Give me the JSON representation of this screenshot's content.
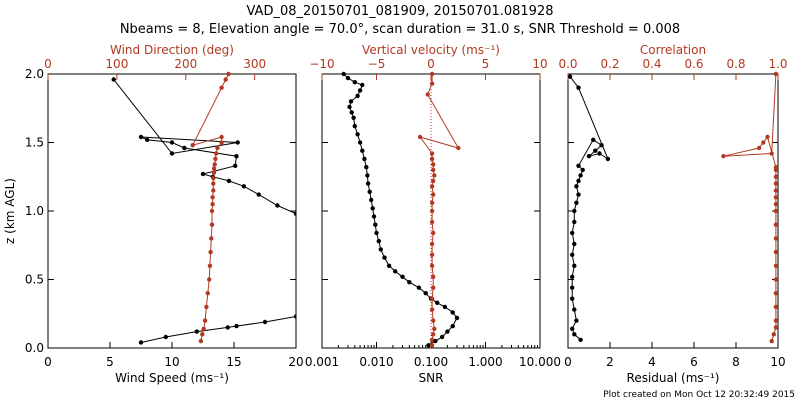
{
  "title": {
    "line1": "VAD_08_20150701_081909, 20150701.081928",
    "line2": "Nbeams = 8, Elevation angle = 70.0°, scan duration = 31.0 s, SNR Threshold = 0.008"
  },
  "footer": "Plot created on Mon Oct 12 20:32:49 2015",
  "colors": {
    "black": "#000000",
    "red": "#b23a22",
    "axis": "#000000"
  },
  "chart_data": [
    {
      "type": "scatter",
      "ylabel": "z (km AGL)",
      "ylim": [
        0.0,
        2.0
      ],
      "yticks": [
        0.0,
        0.5,
        1.0,
        1.5,
        2.0
      ],
      "ytick_labels": [
        "0.0",
        "0.5",
        "1.0",
        "1.5",
        "2.0"
      ],
      "bottom_axis": {
        "label": "Wind Speed (ms⁻¹)",
        "lim": [
          0,
          20
        ],
        "ticks": [
          0,
          5,
          10,
          15,
          20
        ],
        "tick_labels": [
          "0",
          "5",
          "10",
          "15",
          "20"
        ],
        "scale": "linear"
      },
      "top_axis": {
        "label": "Wind Direction (deg)",
        "lim": [
          0,
          360
        ],
        "ticks": [
          0,
          100,
          200,
          300
        ],
        "tick_labels": [
          "0",
          "100",
          "200",
          "300"
        ],
        "scale": "linear"
      },
      "series": [
        {
          "axis": "bottom",
          "color": "black",
          "x": [
            7.5,
            9.5,
            12,
            14.5,
            15.2,
            17.5,
            20,
            20,
            18.5,
            17,
            15.8,
            14.6,
            13.3,
            12.5,
            15.1,
            15.2,
            11,
            10,
            8,
            7.5,
            15.3,
            10,
            5.3
          ],
          "y": [
            0.04,
            0.08,
            0.12,
            0.15,
            0.16,
            0.19,
            0.23,
            0.98,
            1.04,
            1.12,
            1.18,
            1.22,
            1.25,
            1.27,
            1.33,
            1.4,
            1.46,
            1.5,
            1.52,
            1.54,
            1.5,
            1.42,
            1.96
          ]
        },
        {
          "axis": "top",
          "color": "red",
          "x": [
            222,
            224,
            226,
            228,
            230,
            232,
            234,
            235,
            236,
            237,
            238,
            238,
            239,
            239,
            240,
            240,
            240,
            241,
            241,
            242,
            243,
            244,
            246,
            252,
            252,
            210,
            252,
            258,
            262
          ],
          "y": [
            0.05,
            0.1,
            0.14,
            0.2,
            0.3,
            0.4,
            0.5,
            0.6,
            0.7,
            0.8,
            0.9,
            1.0,
            1.05,
            1.1,
            1.15,
            1.2,
            1.24,
            1.28,
            1.31,
            1.34,
            1.38,
            1.42,
            1.46,
            1.5,
            1.54,
            1.48,
            1.9,
            1.96,
            2.0
          ]
        }
      ]
    },
    {
      "type": "scatter",
      "ylim": [
        0.0,
        2.0
      ],
      "bottom_axis": {
        "label": "SNR",
        "lim": [
          0.001,
          10
        ],
        "ticks": [
          0.001,
          0.01,
          0.1,
          1,
          10
        ],
        "tick_labels": [
          "0.001",
          "0.010",
          "0.100",
          "1.000",
          "10.000"
        ],
        "scale": "log"
      },
      "top_axis": {
        "label": "Vertical velocity (ms⁻¹)",
        "lim": [
          -10,
          10
        ],
        "ticks": [
          -10,
          -5,
          0,
          5,
          10
        ],
        "tick_labels": [
          "−10",
          "−5",
          "0",
          "5",
          "10"
        ],
        "scale": "linear"
      },
      "series": [
        {
          "axis": "bottom",
          "color": "black",
          "x": [
            0.09,
            0.12,
            0.16,
            0.2,
            0.25,
            0.3,
            0.25,
            0.18,
            0.13,
            0.1,
            0.08,
            0.06,
            0.04,
            0.03,
            0.022,
            0.017,
            0.014,
            0.012,
            0.011,
            0.01,
            0.0095,
            0.009,
            0.0085,
            0.008,
            0.0075,
            0.007,
            0.0068,
            0.0065,
            0.006,
            0.0055,
            0.005,
            0.0045,
            0.004,
            0.0038,
            0.0035,
            0.0032,
            0.0034,
            0.0045,
            0.005,
            0.0055,
            0.004,
            0.003,
            0.0025
          ],
          "y": [
            0.02,
            0.05,
            0.08,
            0.12,
            0.16,
            0.22,
            0.26,
            0.3,
            0.33,
            0.36,
            0.4,
            0.44,
            0.48,
            0.52,
            0.56,
            0.6,
            0.66,
            0.72,
            0.78,
            0.84,
            0.9,
            0.96,
            1.02,
            1.08,
            1.14,
            1.2,
            1.26,
            1.32,
            1.38,
            1.44,
            1.5,
            1.56,
            1.62,
            1.68,
            1.72,
            1.76,
            1.8,
            1.84,
            1.88,
            1.92,
            1.94,
            1.97,
            2.0
          ]
        },
        {
          "axis": "top",
          "color": "red",
          "x": [
            0.1,
            0.1,
            0.2,
            0.3,
            0.2,
            0.1,
            0.1,
            0.2,
            0.2,
            0.1,
            0.1,
            0.1,
            0.2,
            0.1,
            0.1,
            0.1,
            0.2,
            0.1,
            0.2,
            0.3,
            0.2,
            0.2,
            0.1,
            0.1,
            -1.0,
            2.5,
            -0.3,
            0.1,
            0.1
          ],
          "y": [
            0.02,
            0.06,
            0.1,
            0.14,
            0.2,
            0.28,
            0.36,
            0.44,
            0.52,
            0.6,
            0.68,
            0.76,
            0.84,
            0.92,
            1.0,
            1.06,
            1.12,
            1.18,
            1.22,
            1.26,
            1.3,
            1.34,
            1.38,
            1.42,
            1.54,
            1.46,
            1.85,
            1.93,
            2.0
          ]
        }
      ]
    },
    {
      "type": "scatter",
      "ylim": [
        0.0,
        2.0
      ],
      "bottom_axis": {
        "label": "Residual (ms⁻¹)",
        "lim": [
          0,
          10
        ],
        "ticks": [
          0,
          2,
          4,
          6,
          8,
          10
        ],
        "tick_labels": [
          "0",
          "2",
          "4",
          "6",
          "8",
          "10"
        ],
        "scale": "linear"
      },
      "top_axis": {
        "label": "Correlation",
        "lim": [
          0,
          1
        ],
        "ticks": [
          0.0,
          0.2,
          0.4,
          0.6,
          0.8,
          1.0
        ],
        "tick_labels": [
          "0.0",
          "0.2",
          "0.4",
          "0.6",
          "0.8",
          "1.0"
        ],
        "scale": "linear"
      },
      "series": [
        {
          "axis": "bottom",
          "color": "black",
          "x": [
            0.6,
            0.3,
            0.2,
            0.4,
            0.3,
            0.2,
            0.2,
            0.2,
            0.3,
            0.2,
            0.3,
            0.2,
            0.3,
            0.3,
            0.4,
            0.5,
            0.4,
            0.5,
            0.6,
            0.7,
            0.5,
            1.2,
            1.6,
            1.3,
            1.0,
            1.5,
            1.9,
            0.5,
            0.1
          ],
          "y": [
            0.06,
            0.1,
            0.14,
            0.2,
            0.28,
            0.36,
            0.44,
            0.52,
            0.6,
            0.68,
            0.76,
            0.84,
            0.92,
            1.0,
            1.06,
            1.12,
            1.18,
            1.22,
            1.26,
            1.3,
            1.33,
            1.52,
            1.48,
            1.44,
            1.4,
            1.42,
            1.38,
            1.9,
            1.98
          ]
        },
        {
          "axis": "top",
          "color": "red",
          "x": [
            0.97,
            0.98,
            0.99,
            0.99,
            0.99,
            0.99,
            0.99,
            0.99,
            0.99,
            0.99,
            0.99,
            0.99,
            0.99,
            0.99,
            0.99,
            0.99,
            0.99,
            0.99,
            0.99,
            0.95,
            0.93,
            0.91,
            0.74,
            0.97,
            0.99
          ],
          "y": [
            0.05,
            0.1,
            0.15,
            0.2,
            0.3,
            0.4,
            0.5,
            0.6,
            0.7,
            0.8,
            0.9,
            1.0,
            1.05,
            1.1,
            1.15,
            1.2,
            1.25,
            1.3,
            1.32,
            1.54,
            1.5,
            1.46,
            1.4,
            1.42,
            2.0
          ]
        }
      ]
    }
  ]
}
